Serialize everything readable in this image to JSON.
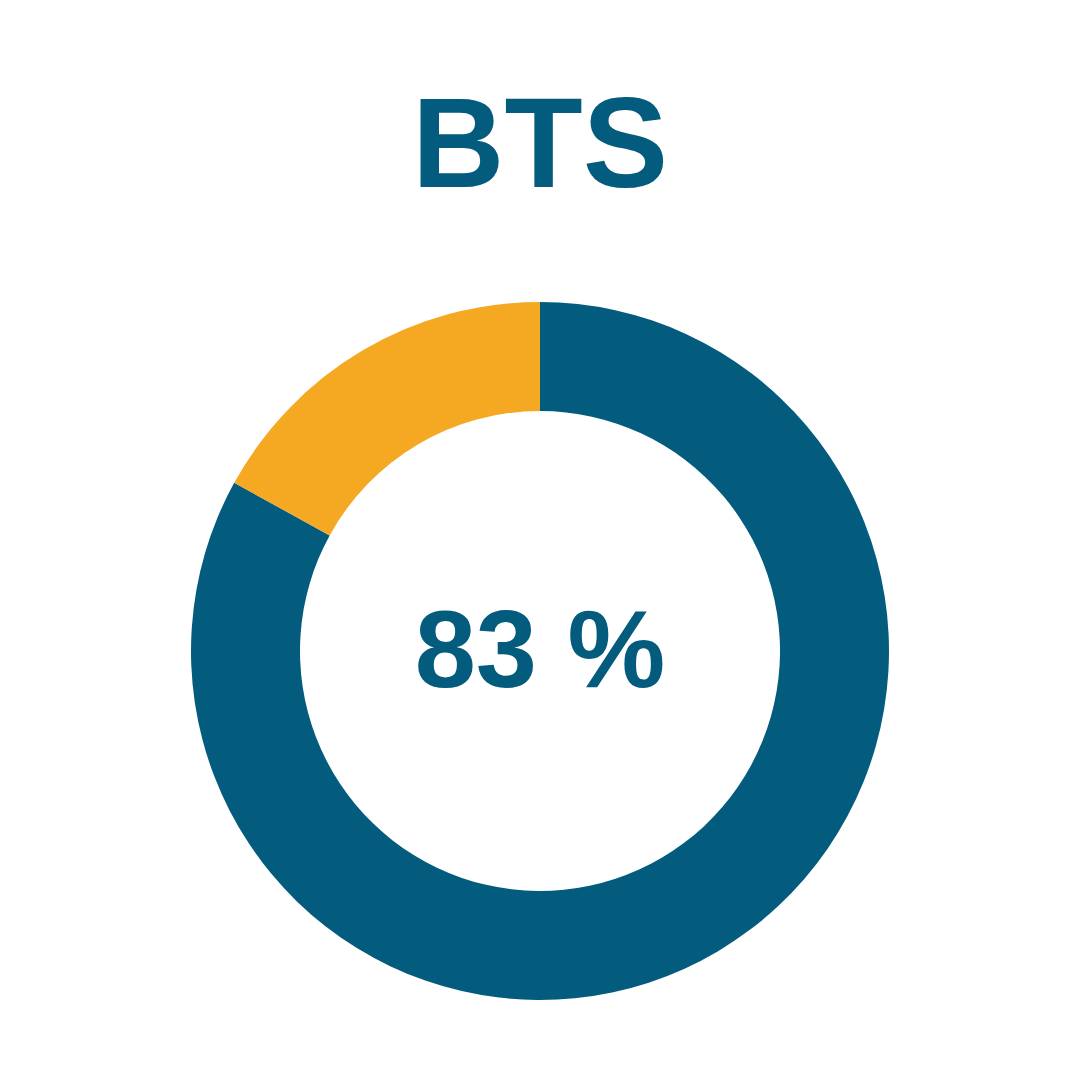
{
  "chart_data": {
    "type": "donut",
    "title": "BTS",
    "categories": [
      null,
      null
    ],
    "values": [
      83,
      17
    ],
    "colors": [
      "#035b7d",
      "#f5a922"
    ],
    "value_labels": [
      "83 %",
      null
    ]
  }
}
